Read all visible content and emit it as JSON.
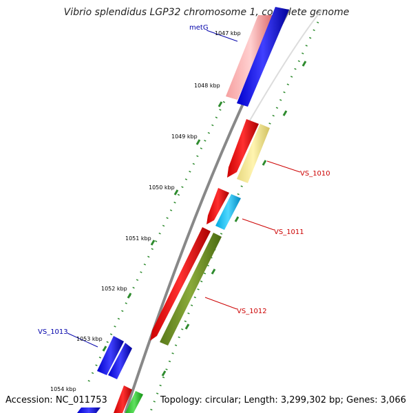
{
  "title": "Vibrio splendidus LGP32 chromosome 1, complete genome",
  "accession_text": "Accession: NC_011753",
  "summary_text": "Topology: circular; Length: 3,299,302 bp; Genes: 3,066",
  "colors": {
    "backbone": "#888888",
    "tick_dots": "#2e8b2e",
    "label_forward": "#0000aa",
    "label_reverse": "#cc0000"
  },
  "scale_ticks": [
    "1047 kbp",
    "1048 kbp",
    "1049 kbp",
    "1050 kbp",
    "1051 kbp",
    "1052 kbp",
    "1053 kbp",
    "1054 kbp"
  ],
  "gene_labels": [
    {
      "name": "metG",
      "strand": "forward"
    },
    {
      "name": "VS_1010",
      "strand": "reverse"
    },
    {
      "name": "VS_1011",
      "strand": "reverse"
    },
    {
      "name": "VS_1012",
      "strand": "reverse"
    },
    {
      "name": "VS_1013",
      "strand": "forward"
    }
  ]
}
